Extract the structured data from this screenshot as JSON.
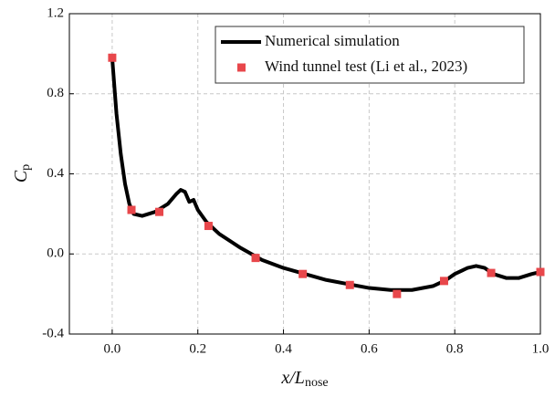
{
  "chart_data": {
    "type": "line",
    "xlabel": "x/L",
    "xlabel_sub": "nose",
    "ylabel": "C",
    "ylabel_sub": "p",
    "xlim": [
      -0.1,
      1.0
    ],
    "ylim": [
      -0.4,
      1.2
    ],
    "xticks": [
      {
        "value": 0,
        "label": "0.0"
      },
      0.2,
      0.4,
      0.6,
      0.8,
      {
        "value": 1,
        "label": "1.0"
      }
    ],
    "yticks": [
      -0.4,
      {
        "value": 0,
        "label": "0.0"
      },
      0.4,
      0.8,
      1.2
    ],
    "grid": true,
    "legend": "upper right",
    "series": [
      {
        "name": "Numerical simulation",
        "color": "#000000",
        "mode": "line",
        "x": [
          0,
          0.01,
          0.02,
          0.03,
          0.04,
          0.05,
          0.07,
          0.1,
          0.13,
          0.15,
          0.16,
          0.17,
          0.18,
          0.19,
          0.2,
          0.22,
          0.25,
          0.3,
          0.35,
          0.4,
          0.45,
          0.5,
          0.55,
          0.6,
          0.65,
          0.7,
          0.75,
          0.78,
          0.8,
          0.83,
          0.85,
          0.87,
          0.89,
          0.92,
          0.95,
          0.98,
          1.0
        ],
        "values": [
          0.98,
          0.7,
          0.5,
          0.35,
          0.25,
          0.2,
          0.19,
          0.21,
          0.25,
          0.3,
          0.32,
          0.31,
          0.26,
          0.27,
          0.22,
          0.16,
          0.1,
          0.03,
          -0.03,
          -0.07,
          -0.1,
          -0.13,
          -0.15,
          -0.17,
          -0.18,
          -0.18,
          -0.16,
          -0.13,
          -0.1,
          -0.07,
          -0.06,
          -0.07,
          -0.1,
          -0.12,
          -0.12,
          -0.1,
          -0.09
        ]
      },
      {
        "name": "Wind tunnel test (Li et al., 2023)",
        "color": "#e8474b",
        "mode": "marker",
        "x": [
          0,
          0.045,
          0.11,
          0.225,
          0.335,
          0.445,
          0.555,
          0.665,
          0.775,
          0.885,
          1.0
        ],
        "values": [
          0.98,
          0.22,
          0.21,
          0.14,
          -0.02,
          -0.1,
          -0.155,
          -0.2,
          -0.135,
          -0.095,
          -0.09
        ]
      }
    ]
  }
}
